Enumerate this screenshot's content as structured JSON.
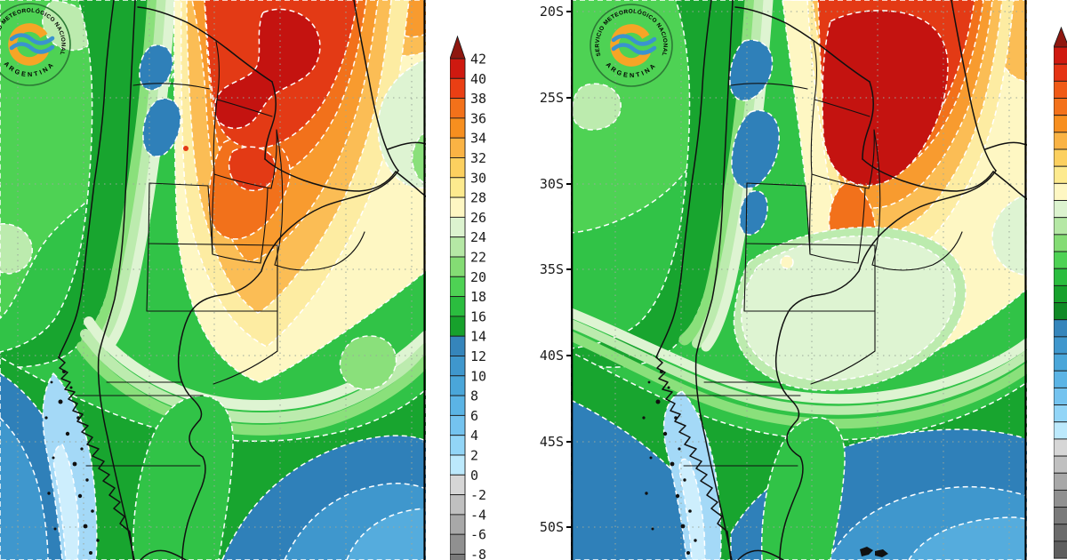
{
  "page": {
    "description": "Two side-by-side maximum temperature contour forecast maps of Argentina by Servicio Meteorologico Nacional, each with a temperature colorbar in degrees Celsius and a latitude axis."
  },
  "logo": {
    "text_top": "SERVICIO METEOROLÓGICO NACIONAL",
    "text_bottom": "ARGENTINA",
    "ring_color": "#2c7a35",
    "text_color": "#1c6b2f",
    "c_color": "#f6a526",
    "waves_color": "#3a93cf"
  },
  "latitude_axis": {
    "labels": [
      "20S",
      "25S",
      "30S",
      "35S",
      "40S",
      "45S",
      "50S"
    ]
  },
  "colorbar_left": {
    "unit_labels": [
      "42",
      "40",
      "38",
      "36",
      "34",
      "32",
      "30",
      "28",
      "26",
      "24",
      "22",
      "20",
      "18",
      "16",
      "14",
      "12",
      "10",
      "8",
      "6",
      "4",
      "2",
      "0",
      "-2",
      "-4",
      "-6",
      "-8"
    ],
    "cell_colors": [
      "#cf1910",
      "#ea3f14",
      "#f3711a",
      "#f78f1f",
      "#fab344",
      "#fcd05f",
      "#fdea8e",
      "#fef7c3",
      "#dcf3cf",
      "#b5e8a5",
      "#84dc74",
      "#4ed254",
      "#2bbd3f",
      "#17a12c",
      "#3585bb",
      "#3f97cd",
      "#4aa6d9",
      "#5bb4e5",
      "#74c3ef",
      "#92d5f7",
      "#bce9fc",
      "#d6d6d6",
      "#c0c0c0",
      "#a8a8a8",
      "#909090",
      "#7a7a7a"
    ],
    "arrow_color": "#8f1710"
  },
  "colorbar_right": {
    "unit_labels": [],
    "cell_colors": [
      "#cf1910",
      "#e53414",
      "#f05a16",
      "#f3711a",
      "#f78f1f",
      "#fab344",
      "#fcd05f",
      "#fdea8e",
      "#fef7c3",
      "#dcf3cf",
      "#b5e8a5",
      "#84dc74",
      "#4ed254",
      "#2bbd3f",
      "#17a12c",
      "#108a26",
      "#3585bb",
      "#3f97cd",
      "#4aa6d9",
      "#5bb4e5",
      "#74c3ef",
      "#92d5f7",
      "#bce9fc",
      "#d6d6d6",
      "#c0c0c0",
      "#a8a8a8",
      "#909090",
      "#7a7a7a",
      "#6b6b6b",
      "#5e5e5e"
    ],
    "arrow_color": "#8f1710"
  },
  "palette": {
    "dark_red": "#c41310",
    "red": "#e33a15",
    "orange": "#f2711b",
    "light_orange": "#f89b2f",
    "amber": "#fbbd55",
    "pale_yellow": "#fdeca2",
    "cream": "#fef7c3",
    "mint": "#def4d2",
    "pale_green": "#bcebae",
    "light_green": "#8ae07b",
    "green": "#4ed254",
    "mid_green": "#31c347",
    "deep_green": "#18a52f",
    "dark_green": "#0f8c24",
    "steel_blue": "#2f80b9",
    "blue": "#3f97cd",
    "sky_blue": "#55acdd",
    "light_blue": "#74c3ef",
    "pale_blue": "#a4d9f7",
    "ice_blue": "#cdeefd",
    "graticule": "#9aa79b",
    "border": "#101010",
    "logo_ring": "#2c7a35",
    "logo_c": "#f6a526",
    "logo_waves": "#3a93cf"
  },
  "maps": {
    "left": {
      "hot_core": "dark red band (40-42+) over northern Argentina",
      "cold_core": "pale blue (2-6) along southern Andes and Chilean fjords"
    },
    "right": {
      "hot_core": "compact dark red core (40-42+) over north-central Argentina",
      "cold_core": "pale blue (2-6) along southern Andes; cool mint air over central Argentina"
    }
  }
}
